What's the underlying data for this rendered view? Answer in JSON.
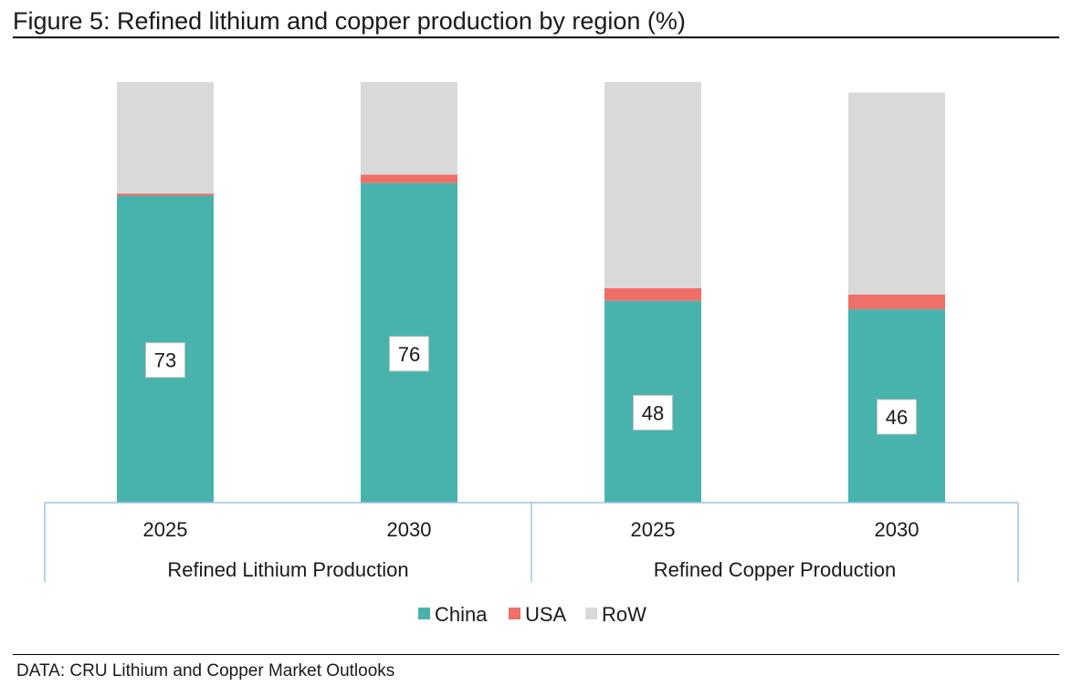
{
  "header": {
    "title": "Figure 5: Refined lithium and copper production by region (%)"
  },
  "footer": {
    "source": "DATA: CRU Lithium and Copper Market Outlooks"
  },
  "chart_data": {
    "type": "bar",
    "stacked": true,
    "categories": [
      "2025",
      "2030",
      "2025",
      "2030"
    ],
    "groups": [
      {
        "label": "Refined Lithium Production",
        "categories": [
          "2025",
          "2030"
        ]
      },
      {
        "label": "Refined Copper Production",
        "categories": [
          "2025",
          "2030"
        ]
      }
    ],
    "series": [
      {
        "name": "China",
        "color": "#47b3ac",
        "values": [
          73,
          76,
          48,
          46
        ],
        "data_labels": [
          "73",
          "76",
          "48",
          "46"
        ]
      },
      {
        "name": "USA",
        "color": "#ef7068",
        "values": [
          0.5,
          2,
          3,
          3.5
        ]
      },
      {
        "name": "RoW",
        "color": "#d9d9d9",
        "values": [
          26.5,
          22,
          49,
          48
        ]
      }
    ],
    "ylim": [
      0,
      100
    ],
    "grid": false,
    "legend_position": "bottom",
    "xlabel": "",
    "ylabel": ""
  }
}
